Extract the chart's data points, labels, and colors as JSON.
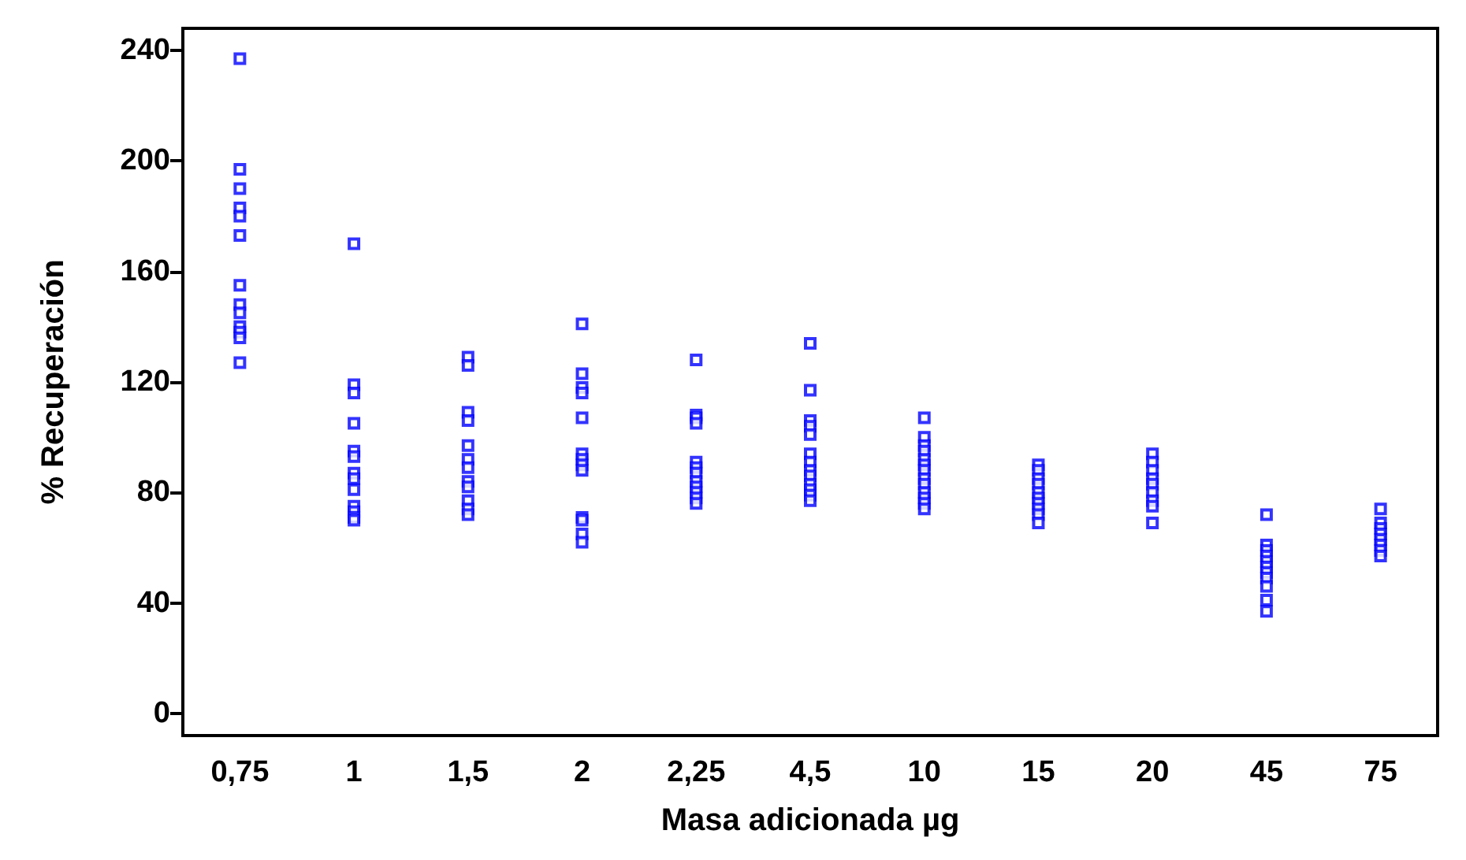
{
  "chart_data": {
    "type": "scatter",
    "xlabel": "Masa adicionada µg",
    "ylabel": "% Recuperación",
    "categories": [
      "0,75",
      "1",
      "1,5",
      "2",
      "2,25",
      "4,5",
      "10",
      "15",
      "20",
      "45",
      "75"
    ],
    "ylim": [
      -8,
      248
    ],
    "yticks": [
      0,
      40,
      80,
      120,
      160,
      200,
      240
    ],
    "grid": false,
    "marker": "square",
    "series": [
      {
        "color": "#0000ff",
        "x": [
          "0,75",
          "0,75",
          "0,75",
          "0,75",
          "0,75",
          "0,75",
          "0,75",
          "0,75",
          "0,75",
          "0,75",
          "0,75",
          "0,75",
          "0,75",
          "1",
          "1",
          "1",
          "1",
          "1",
          "1",
          "1",
          "1",
          "1",
          "1",
          "1",
          "1",
          "1",
          "1,5",
          "1,5",
          "1,5",
          "1,5",
          "1,5",
          "1,5",
          "1,5",
          "1,5",
          "1,5",
          "1,5",
          "1,5",
          "1,5",
          "2",
          "2",
          "2",
          "2",
          "2",
          "2",
          "2",
          "2",
          "2",
          "2",
          "2",
          "2",
          "2",
          "2,25",
          "2,25",
          "2,25",
          "2,25",
          "2,25",
          "2,25",
          "2,25",
          "2,25",
          "2,25",
          "2,25",
          "2,25",
          "2,25",
          "4,5",
          "4,5",
          "4,5",
          "4,5",
          "4,5",
          "4,5",
          "4,5",
          "4,5",
          "4,5",
          "4,5",
          "4,5",
          "4,5",
          "4,5",
          "10",
          "10",
          "10",
          "10",
          "10",
          "10",
          "10",
          "10",
          "10",
          "10",
          "10",
          "10",
          "10",
          "15",
          "15",
          "15",
          "15",
          "15",
          "15",
          "15",
          "15",
          "15",
          "15",
          "20",
          "20",
          "20",
          "20",
          "20",
          "20",
          "20",
          "20",
          "20",
          "45",
          "45",
          "45",
          "45",
          "45",
          "45",
          "45",
          "45",
          "45",
          "45",
          "45",
          "75",
          "75",
          "75",
          "75",
          "75",
          "75",
          "75",
          "75"
        ],
        "values": [
          237,
          197,
          190,
          183,
          180,
          173,
          155,
          148,
          145,
          140,
          138,
          136,
          127,
          170,
          119,
          116,
          105,
          95,
          93,
          87,
          85,
          81,
          75,
          73,
          71,
          70,
          129,
          126,
          109,
          106,
          97,
          92,
          89,
          84,
          82,
          77,
          74,
          72,
          141,
          123,
          118,
          116,
          107,
          94,
          92,
          90,
          88,
          71,
          70,
          65,
          62,
          128,
          108,
          107,
          105,
          91,
          89,
          87,
          84,
          82,
          80,
          78,
          76,
          134,
          117,
          106,
          104,
          101,
          94,
          91,
          88,
          86,
          83,
          81,
          79,
          77,
          107,
          100,
          97,
          95,
          92,
          90,
          88,
          85,
          83,
          80,
          78,
          76,
          74,
          90,
          88,
          85,
          83,
          80,
          78,
          76,
          74,
          72,
          69,
          94,
          91,
          88,
          85,
          83,
          80,
          77,
          75,
          69,
          72,
          61,
          59,
          57,
          55,
          53,
          51,
          49,
          46,
          41,
          37,
          74,
          69,
          67,
          65,
          63,
          61,
          59,
          57
        ]
      }
    ]
  }
}
